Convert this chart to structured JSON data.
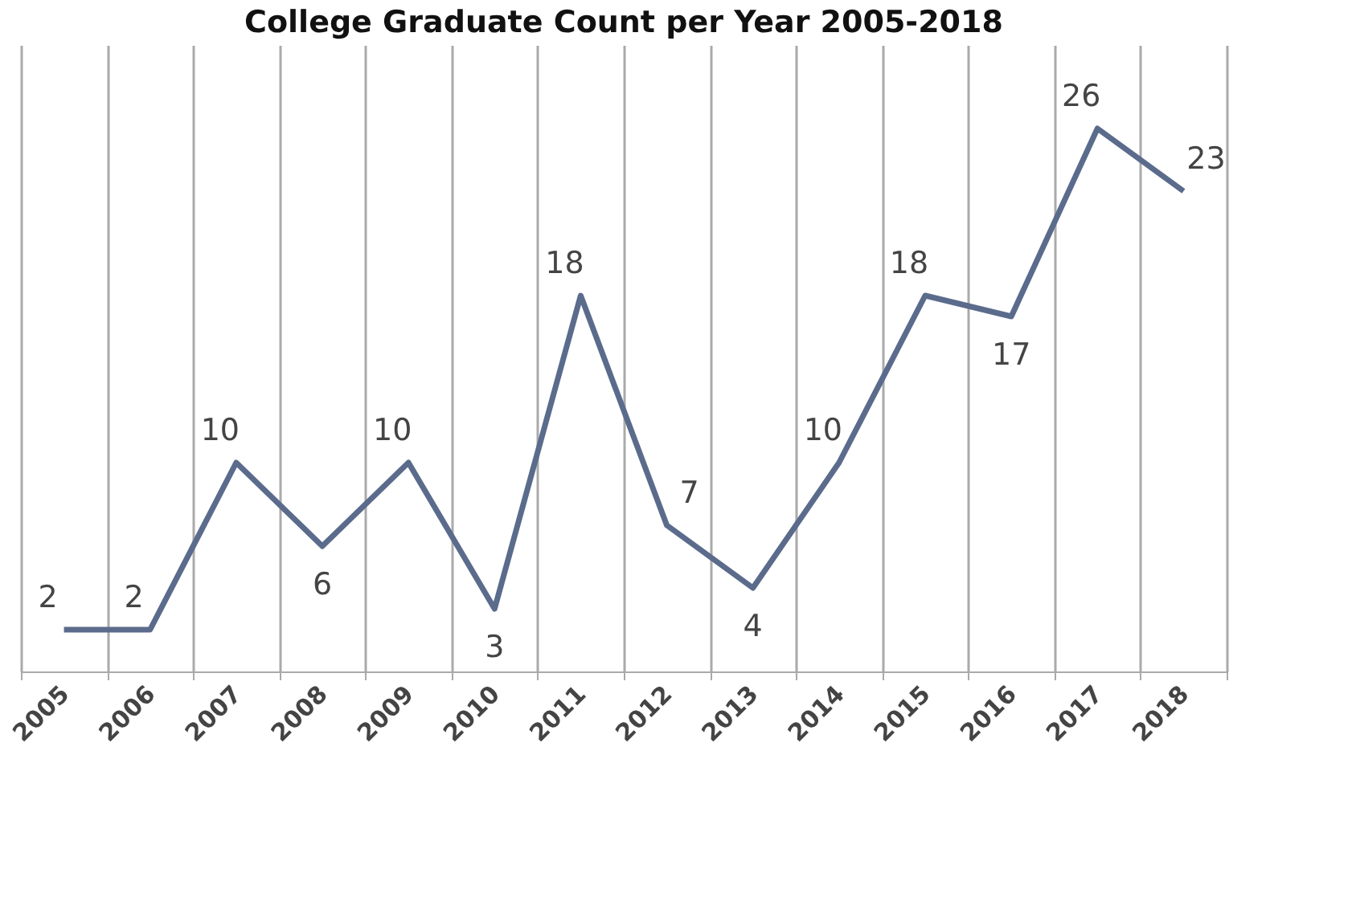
{
  "chart_data": {
    "type": "line",
    "title": "College Graduate Count per Year 2005-2018",
    "categories": [
      "2005",
      "2006",
      "2007",
      "2008",
      "2009",
      "2010",
      "2011",
      "2012",
      "2013",
      "2014",
      "2015",
      "2016",
      "2017",
      "2018"
    ],
    "series": [
      {
        "color": "#5b6b8c",
        "values": [
          2,
          2,
          10,
          6,
          10,
          3,
          18,
          7,
          4,
          10,
          18,
          17,
          26,
          23
        ]
      }
    ],
    "ylim": [
      0,
      30
    ],
    "tick_labels": "x",
    "grid": "x",
    "data_labels": true,
    "marker": "none",
    "line_style": "solid"
  }
}
